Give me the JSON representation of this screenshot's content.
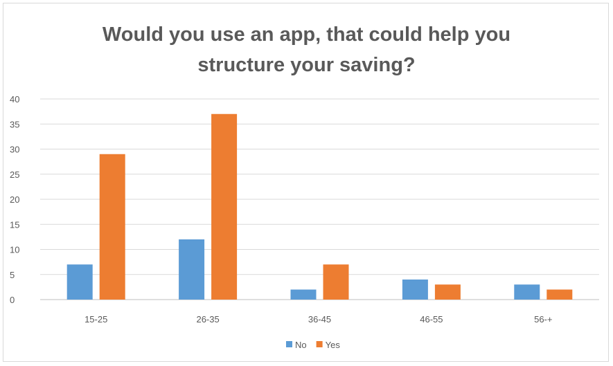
{
  "chart_data": {
    "type": "bar",
    "title_lines": [
      "Would you use an app, that could help you",
      "structure your saving?"
    ],
    "categories": [
      "15-25",
      "26-35",
      "36-45",
      "46-55",
      "56-+"
    ],
    "series": [
      {
        "name": "No",
        "color": "#5b9bd5",
        "values": [
          7,
          12,
          2,
          4,
          3
        ]
      },
      {
        "name": "Yes",
        "color": "#ed7d31",
        "values": [
          29,
          37,
          7,
          3,
          2
        ]
      }
    ],
    "ylim": [
      0,
      40
    ],
    "yticks": [
      0,
      5,
      10,
      15,
      20,
      25,
      30,
      35,
      40
    ],
    "grid": true,
    "legend_position": "bottom"
  }
}
